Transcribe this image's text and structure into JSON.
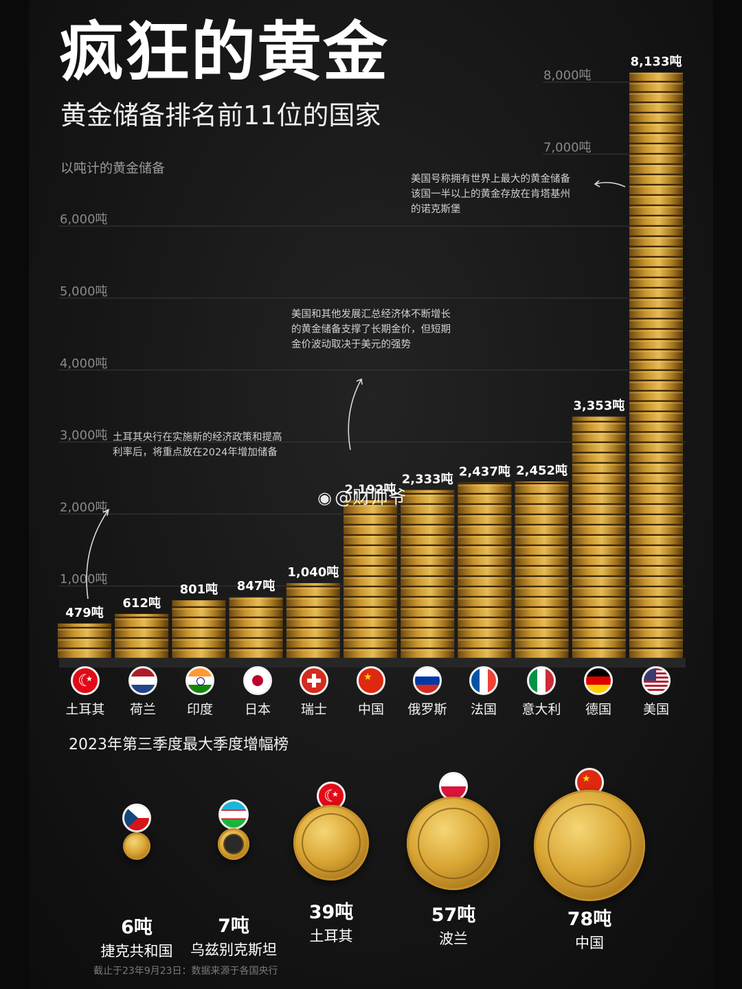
{
  "header": {
    "title": "疯狂的黄金",
    "subtitle": "黄金储备排名前11位的国家",
    "unit_label": "以吨计的黄金储备"
  },
  "chart_data": {
    "type": "bar",
    "title": "疯狂的黄金",
    "subtitle": "黄金储备排名前11位的国家",
    "ylabel": "以吨计的黄金储备",
    "categories": [
      "土耳其",
      "荷兰",
      "印度",
      "日本",
      "瑞士",
      "中国",
      "俄罗斯",
      "法国",
      "意大利",
      "德国",
      "美国"
    ],
    "values": [
      479,
      612,
      801,
      847,
      1040,
      2192,
      2333,
      2437,
      2452,
      3353,
      8133
    ],
    "value_labels": [
      "479吨",
      "612吨",
      "801吨",
      "847吨",
      "1,040吨",
      "2,192吨",
      "2,333吨",
      "2,437吨",
      "2,452吨",
      "3,353吨",
      "8,133吨"
    ],
    "ticks": [
      {
        "v": 1000,
        "label": "1,000吨"
      },
      {
        "v": 2000,
        "label": "2,000吨"
      },
      {
        "v": 3000,
        "label": "3,000吨"
      },
      {
        "v": 4000,
        "label": "4,000吨"
      },
      {
        "v": 5000,
        "label": "5,000吨"
      },
      {
        "v": 6000,
        "label": "6,000吨"
      },
      {
        "v": 7000,
        "label": "7,000吨"
      },
      {
        "v": 8000,
        "label": "8,000吨"
      }
    ],
    "ylim": [
      0,
      8133
    ],
    "grid": true
  },
  "annotations": {
    "usa": "美国号称拥有世界上最大的黄金储备\n该国一半以上的黄金存放在肯塔基州\n的诺克斯堡",
    "middle": "美国和其他发展汇总经济体不断增长\n的黄金储备支撑了长期金价，但短期\n金价波动取决于美元的强势",
    "turkey": "土耳其央行在实施新的经济政策和提高\n利率后，将重点放在2024年增加储备"
  },
  "countries": [
    {
      "name": "土耳其",
      "flag": "turkey-flag-icon"
    },
    {
      "name": "荷兰",
      "flag": "netherlands-flag-icon"
    },
    {
      "name": "印度",
      "flag": "india-flag-icon"
    },
    {
      "name": "日本",
      "flag": "japan-flag-icon"
    },
    {
      "name": "瑞士",
      "flag": "switzerland-flag-icon"
    },
    {
      "name": "中国",
      "flag": "china-flag-icon"
    },
    {
      "name": "俄罗斯",
      "flag": "russia-flag-icon"
    },
    {
      "name": "法国",
      "flag": "france-flag-icon"
    },
    {
      "name": "意大利",
      "flag": "italy-flag-icon"
    },
    {
      "name": "德国",
      "flag": "germany-flag-icon"
    },
    {
      "name": "美国",
      "flag": "usa-flag-icon"
    }
  ],
  "quarter_section": {
    "title": "2023年第三季度最大季度增幅榜",
    "items": [
      {
        "amount": "6吨",
        "name": "捷克共和国",
        "flag": "czech-flag-icon"
      },
      {
        "amount": "7吨",
        "name": "乌兹别克斯坦",
        "flag": "uzbekistan-flag-icon"
      },
      {
        "amount": "39吨",
        "name": "土耳其",
        "flag": "turkey-flag-icon"
      },
      {
        "amount": "57吨",
        "name": "波兰",
        "flag": "poland-flag-icon"
      },
      {
        "amount": "78吨",
        "name": "中国",
        "flag": "china-flag-icon"
      }
    ]
  },
  "footnote": "截止于23年9月23日：数据来源于各国央行",
  "watermark": "@财师爷",
  "colors": {
    "gold_light": "#e2b548",
    "gold_dark": "#6e4a12",
    "background": "#161616"
  }
}
